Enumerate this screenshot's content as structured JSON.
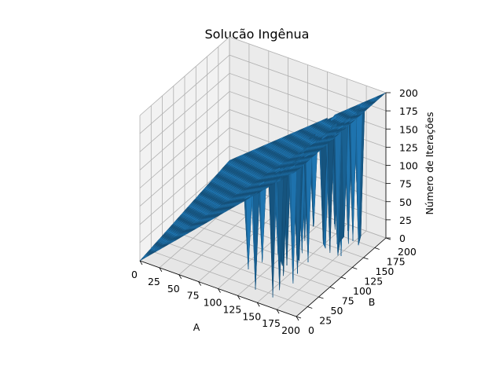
{
  "chart_data": {
    "type": "surface3d",
    "title": "Solução Ingênua",
    "xlabel": "A",
    "ylabel": "B",
    "zlabel": "Número de Iterações",
    "x_ticks": [
      "0",
      "25",
      "50",
      "75",
      "100",
      "125",
      "150",
      "175",
      "200"
    ],
    "y_ticks": [
      "0",
      "25",
      "50",
      "75",
      "100",
      "125",
      "150",
      "175",
      "200"
    ],
    "z_ticks": [
      "0",
      "25",
      "50",
      "75",
      "100",
      "125",
      "150",
      "175",
      "200"
    ],
    "xlim": [
      0,
      200
    ],
    "ylim": [
      0,
      200
    ],
    "zlim": [
      0,
      200
    ],
    "x_range": [
      1,
      200
    ],
    "y_range": [
      1,
      200
    ],
    "surface_rule": "z = max(A, B) roughly on the upper triangle; z ≈ A for most points, with scattered drops to 0 near high B",
    "surface_color": "#1f77b4",
    "grid": true
  }
}
